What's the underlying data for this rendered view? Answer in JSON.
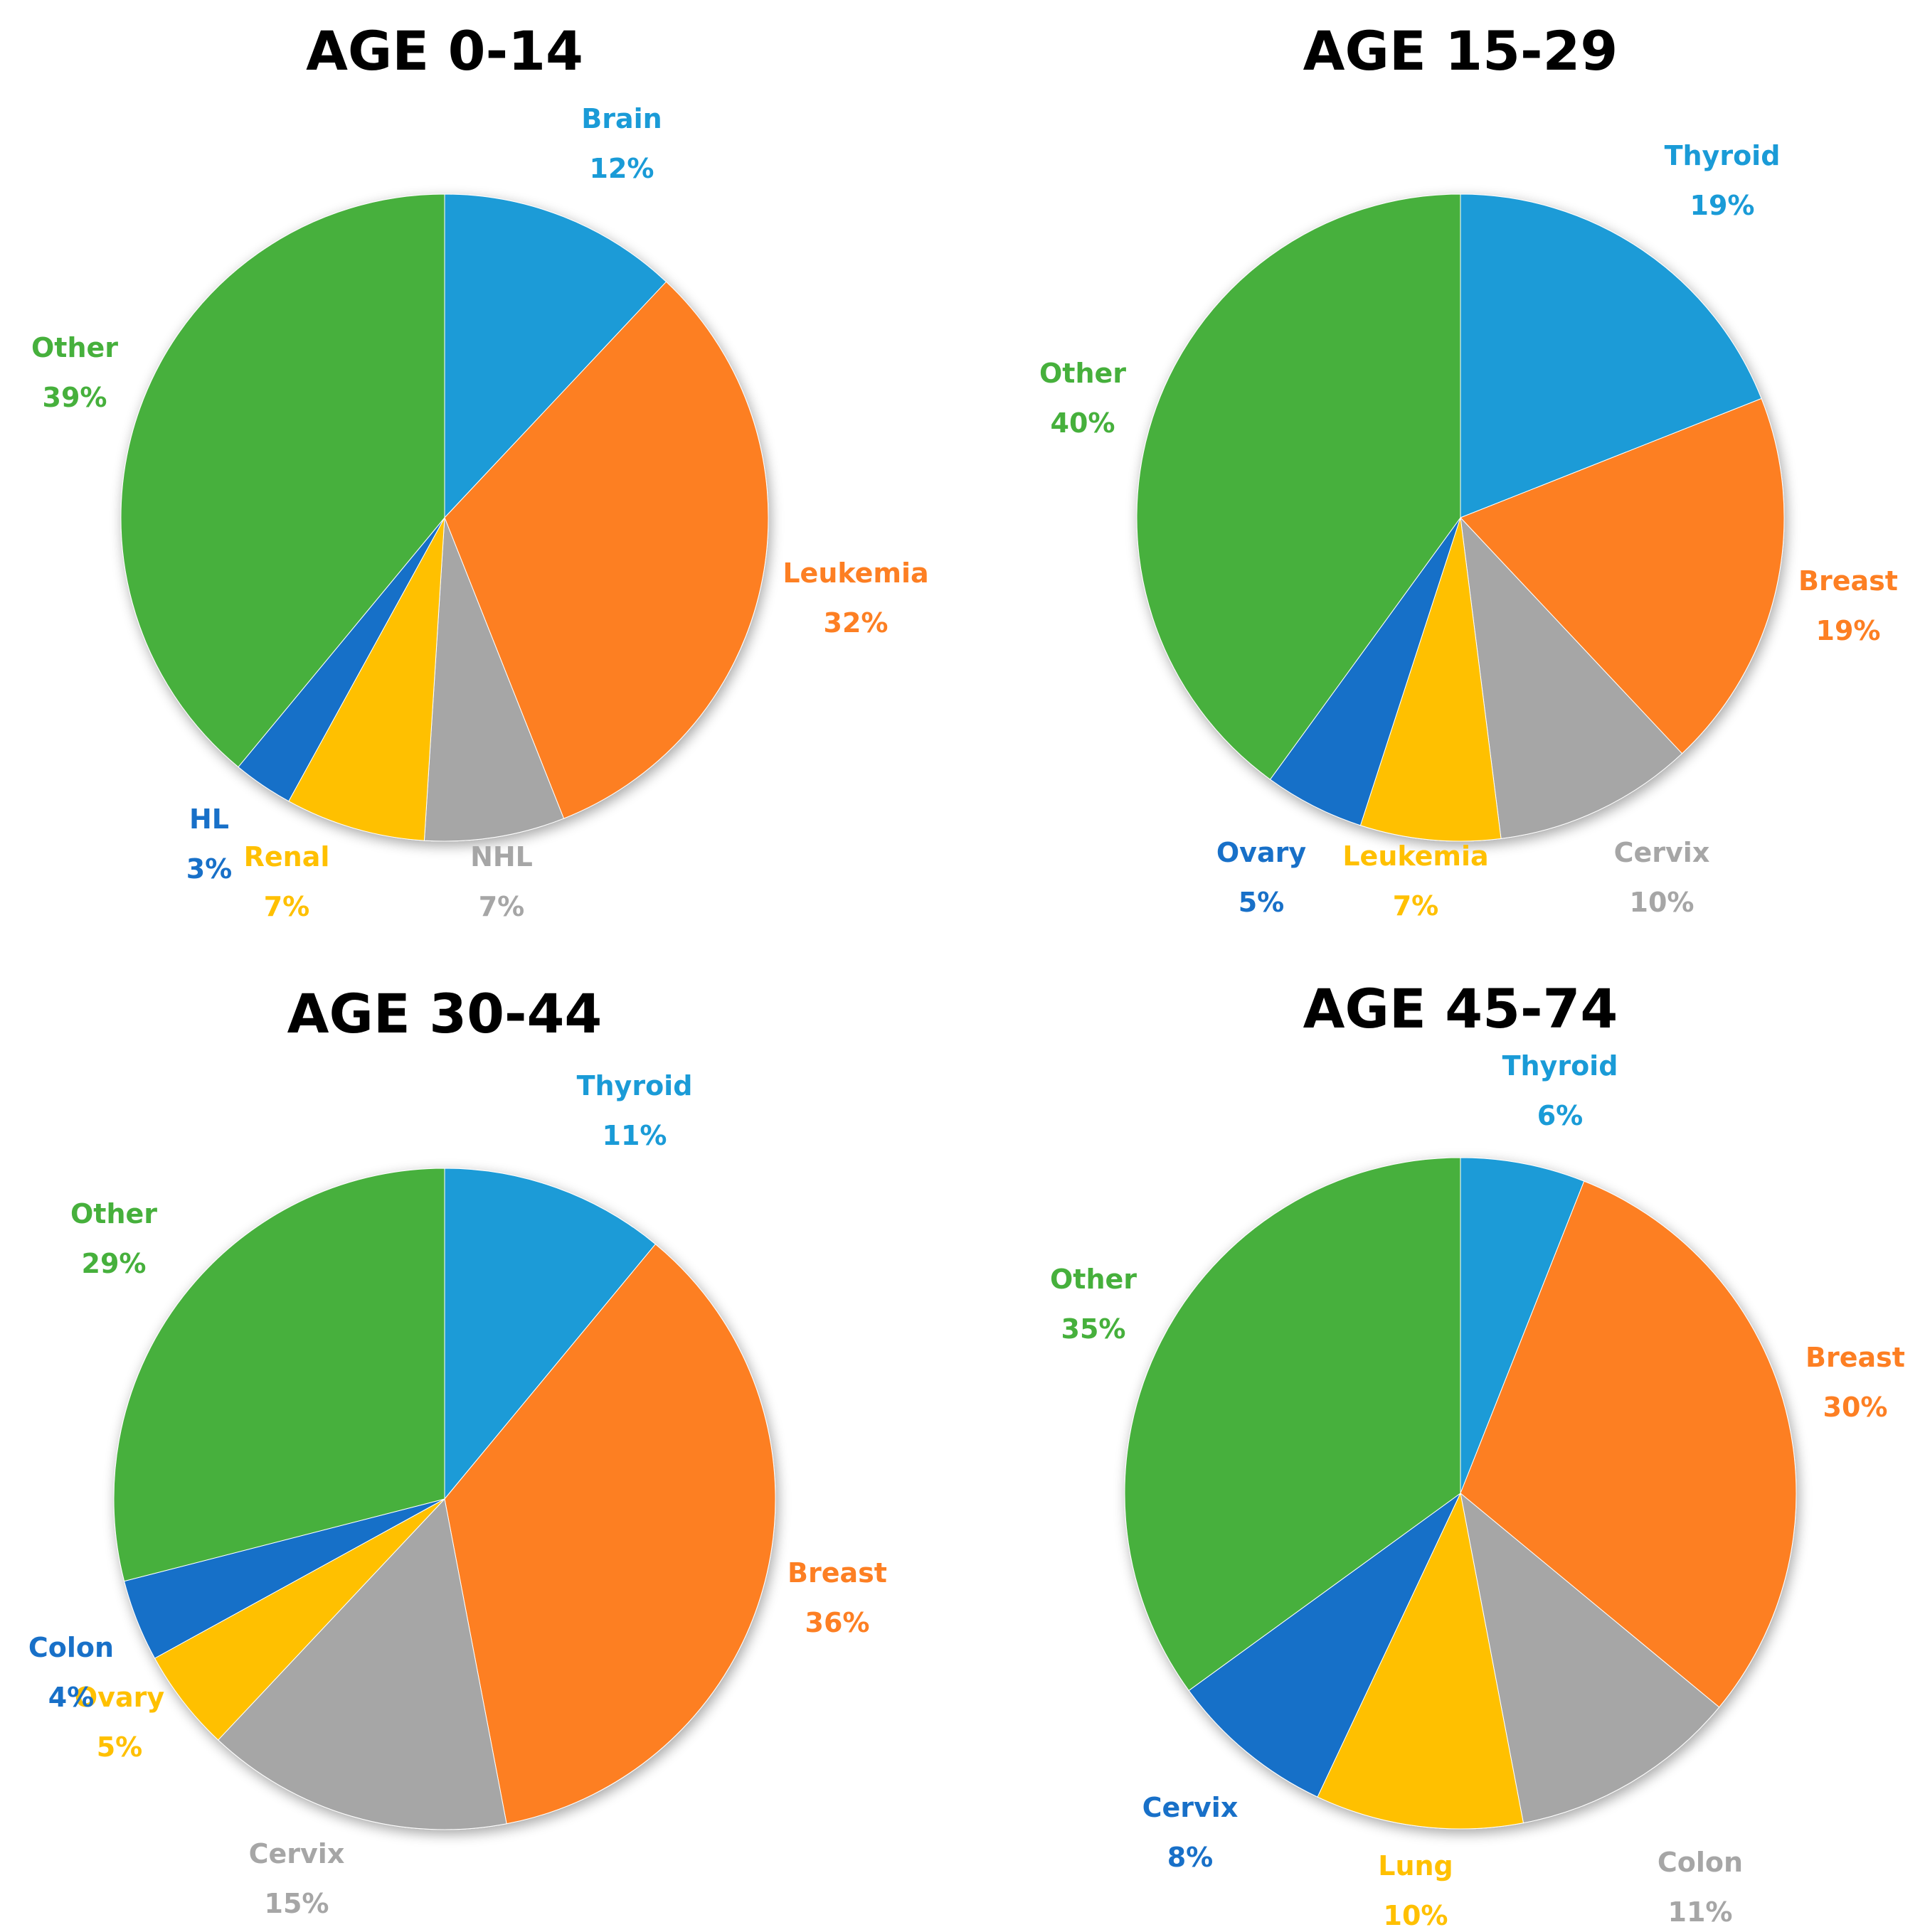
{
  "figure": {
    "charts": [
      {
        "title": "AGE 0-14"
      },
      {
        "title": "AGE 15-29"
      },
      {
        "title": "AGE 30-44"
      },
      {
        "title": "AGE 45-74"
      }
    ]
  },
  "chart_data": [
    {
      "type": "pie",
      "title": "AGE 0-14",
      "labels": [
        "Brain",
        "Leukemia",
        "NHL",
        "Renal",
        "HL",
        "Other"
      ],
      "values": [
        12,
        32,
        7,
        7,
        3,
        39
      ],
      "value_labels": [
        "12%",
        "32%",
        "7%",
        "7%",
        "3%",
        "39%"
      ],
      "colors": [
        "#1a9bd7",
        "#fd7f23",
        "#a6a6a6",
        "#ffc000",
        "#1870c8",
        "#46b03c"
      ],
      "label_colors": [
        "#1a9bd7",
        "#fd7f23",
        "#a6a6a6",
        "#ffc000",
        "#1870c8",
        "#46b03c"
      ]
    },
    {
      "type": "pie",
      "title": "AGE 15-29",
      "labels": [
        "Thyroid",
        "Breast",
        "Cervix",
        "Leukemia",
        "Ovary",
        "Other"
      ],
      "values": [
        19,
        19,
        10,
        7,
        5,
        40
      ],
      "value_labels": [
        "19%",
        "19%",
        "10%",
        "7%",
        "5%",
        "40%"
      ],
      "colors": [
        "#1a9bd7",
        "#fd7f23",
        "#a6a6a6",
        "#ffc000",
        "#1870c8",
        "#46b03c"
      ],
      "label_colors": [
        "#1a9bd7",
        "#fd7f23",
        "#a6a6a6",
        "#ffc000",
        "#1870c8",
        "#46b03c"
      ]
    },
    {
      "type": "pie",
      "title": "AGE 30-44",
      "labels": [
        "Thyroid",
        "Breast",
        "Cervix",
        "Ovary",
        "Colon",
        "Other"
      ],
      "values": [
        11,
        36,
        15,
        5,
        4,
        29
      ],
      "value_labels": [
        "11%",
        "36%",
        "15%",
        "5%",
        "4%",
        "29%"
      ],
      "colors": [
        "#1a9bd7",
        "#fd7f23",
        "#a6a6a6",
        "#ffc000",
        "#1870c8",
        "#46b03c"
      ],
      "label_colors": [
        "#1a9bd7",
        "#fd7f23",
        "#a6a6a6",
        "#ffc000",
        "#1870c8",
        "#46b03c"
      ]
    },
    {
      "type": "pie",
      "title": "AGE 45-74",
      "labels": [
        "Thyroid",
        "Breast",
        "Colon",
        "Lung",
        "Cervix",
        "Other"
      ],
      "values": [
        6,
        30,
        11,
        10,
        8,
        35
      ],
      "value_labels": [
        "6%",
        "30%",
        "11%",
        "10%",
        "8%",
        "35%"
      ],
      "colors": [
        "#1a9bd7",
        "#fd7f23",
        "#a6a6a6",
        "#ffc000",
        "#1870c8",
        "#46b03c"
      ],
      "label_colors": [
        "#1a9bd7",
        "#fd7f23",
        "#a6a6a6",
        "#ffc000",
        "#1870c8",
        "#46b03c"
      ]
    }
  ]
}
